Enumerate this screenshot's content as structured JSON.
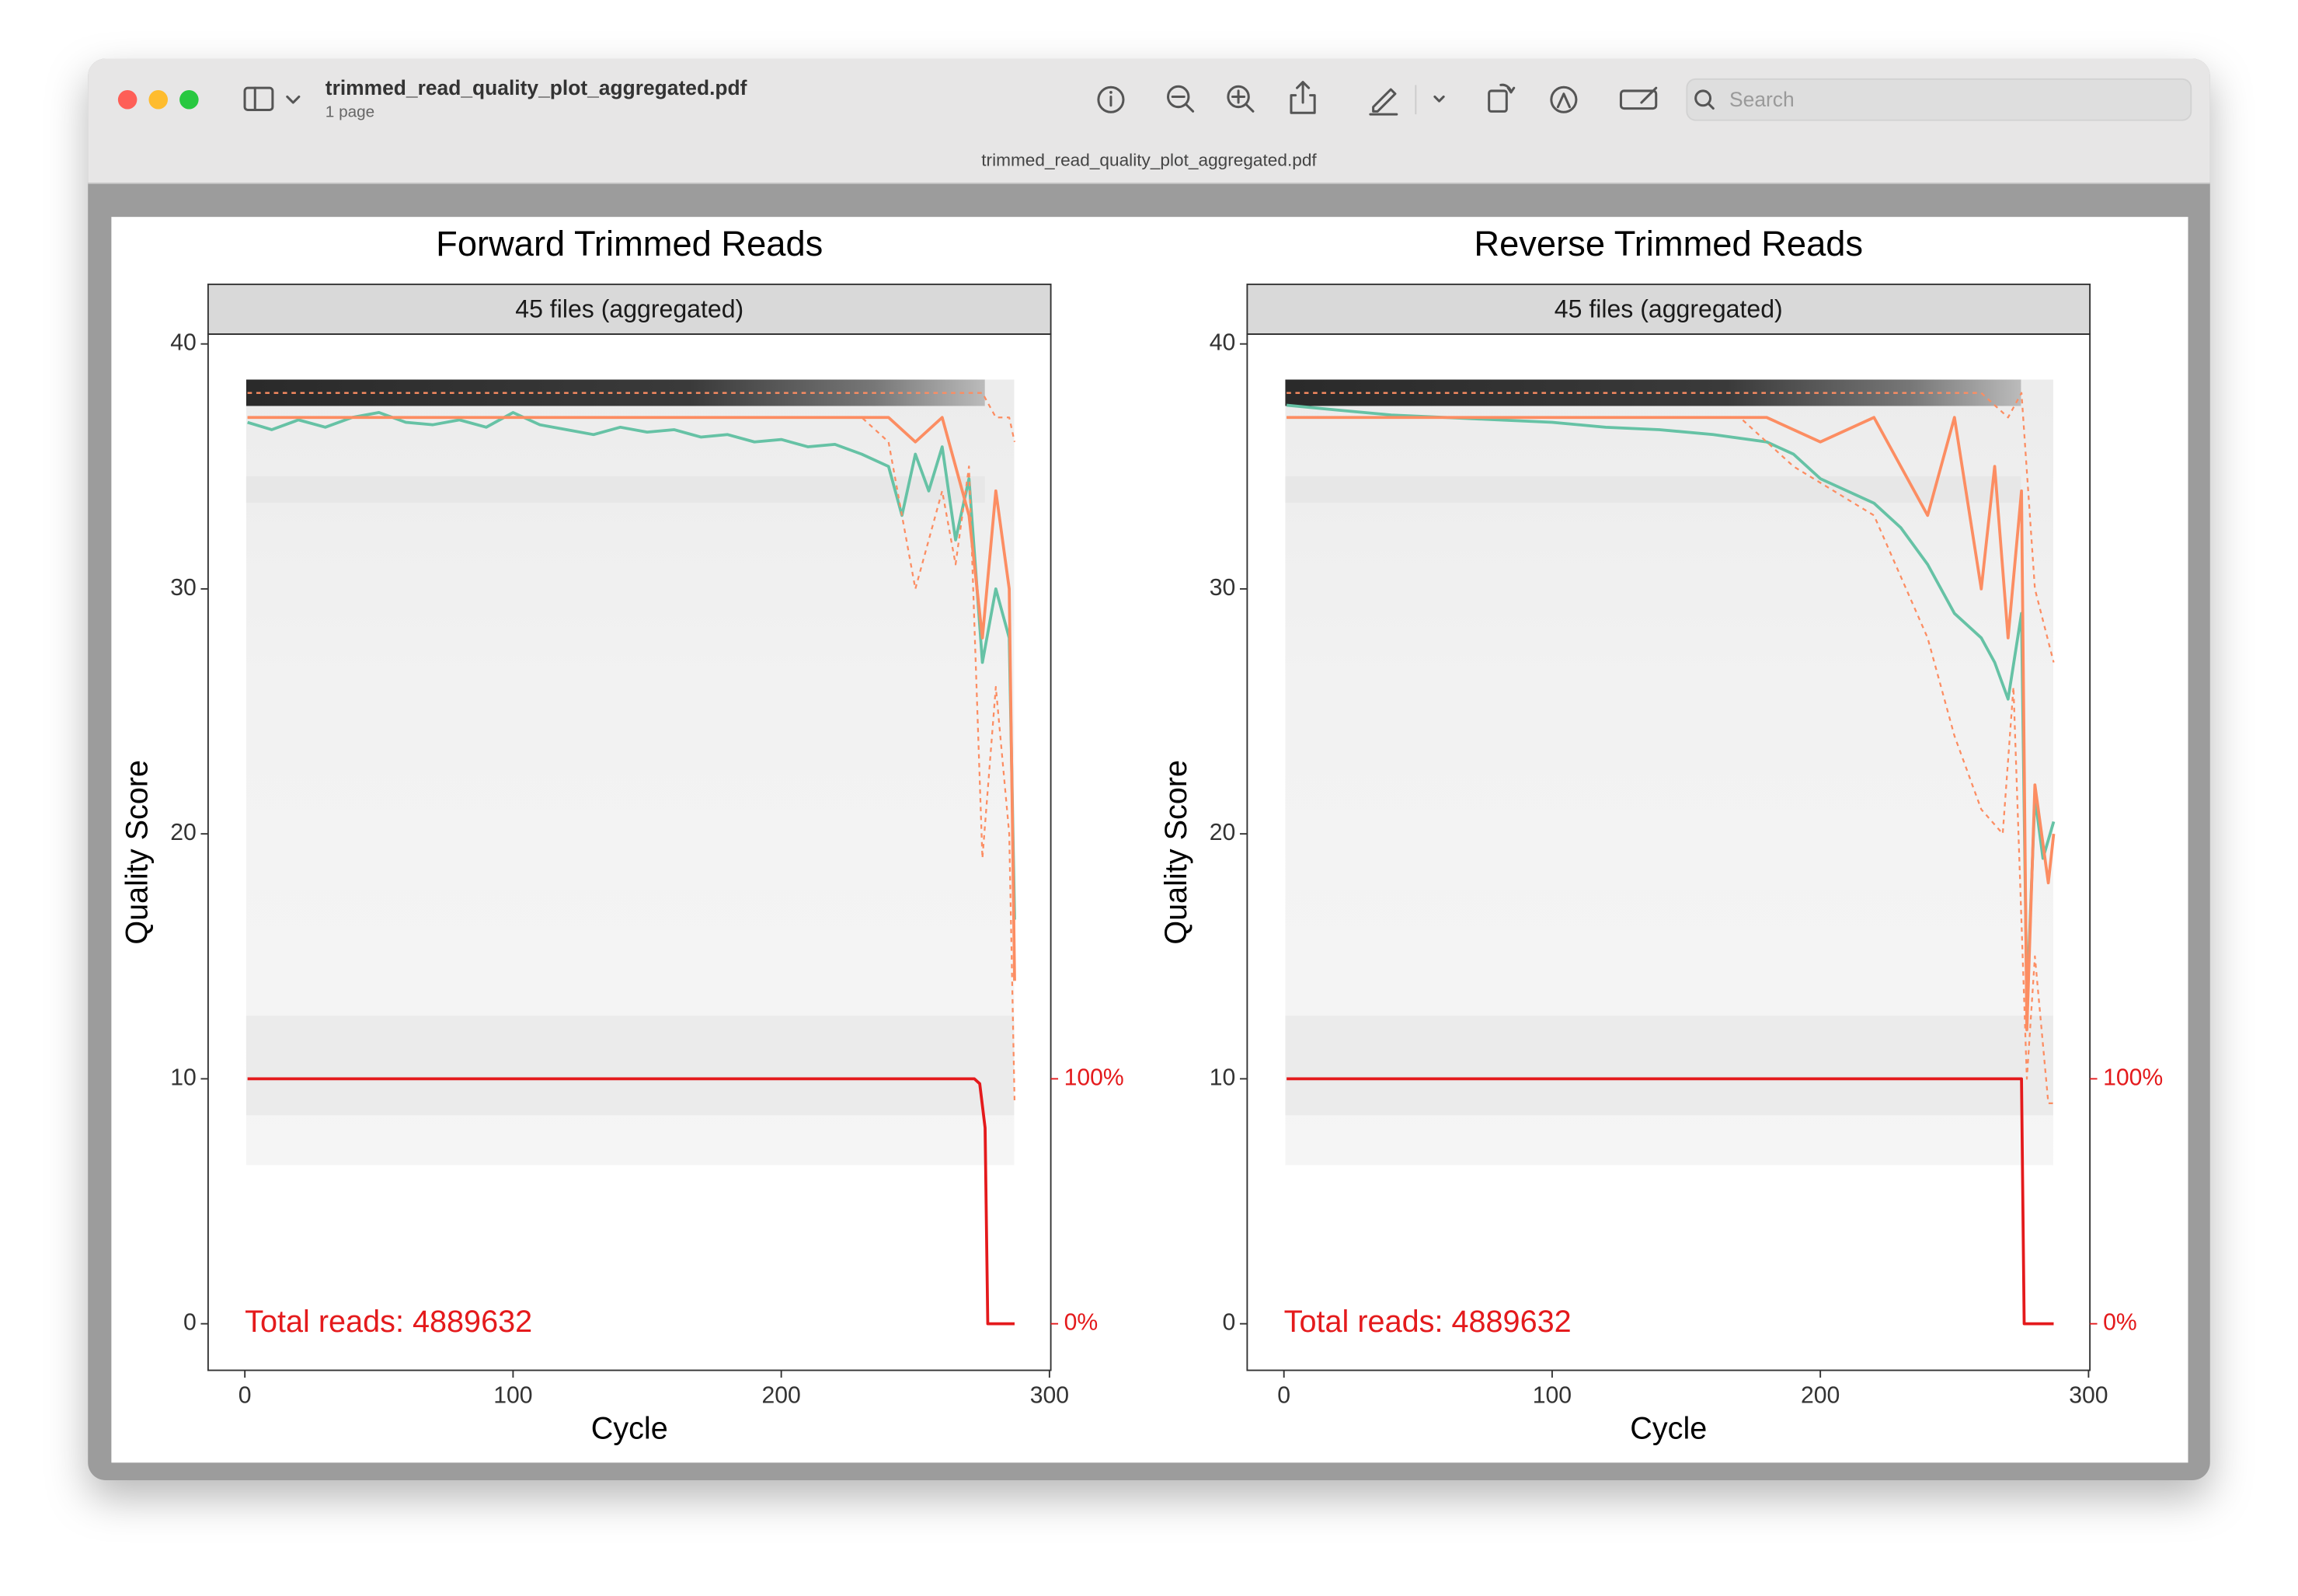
{
  "window": {
    "title": "trimmed_read_quality_plot_aggregated.pdf",
    "subtitle": "1 page",
    "search_placeholder": "Search"
  },
  "chart_data": [
    {
      "type": "line",
      "title": "Forward Trimmed Reads",
      "strip": "45 files (aggregated)",
      "xlabel": "Cycle",
      "ylabel": "Quality Score",
      "annotation": "Total reads: 4889632",
      "xlim": [
        -13.7,
        300.5
      ],
      "ylim": [
        -1.9,
        40.4
      ],
      "xticks": [
        0,
        100,
        200,
        300
      ],
      "yticks": [
        0,
        10,
        20,
        30,
        40
      ],
      "y2lim": [
        -19,
        404
      ],
      "y2ticks": [
        {
          "value": 0,
          "label": "0%"
        },
        {
          "value": 100,
          "label": "100%"
        }
      ],
      "y2color": "#e41a1c",
      "series": [
        {
          "color": "#66c2a5",
          "linestyle": "solid",
          "x": [
            1,
            10,
            20,
            30,
            40,
            50,
            60,
            70,
            80,
            90,
            100,
            110,
            120,
            130,
            140,
            150,
            160,
            170,
            180,
            190,
            200,
            210,
            220,
            230,
            240,
            245,
            250,
            255,
            260,
            265,
            270,
            275,
            280,
            285,
            287
          ],
          "values": [
            36.8,
            36.5,
            36.9,
            36.6,
            37.0,
            37.2,
            36.8,
            36.7,
            36.9,
            36.6,
            37.2,
            36.7,
            36.5,
            36.3,
            36.6,
            36.4,
            36.5,
            36.2,
            36.3,
            36.0,
            36.1,
            35.8,
            35.9,
            35.5,
            35.0,
            33.0,
            35.5,
            34.0,
            35.8,
            32.0,
            34.5,
            27.0,
            30.0,
            28.0,
            16.5
          ]
        },
        {
          "color": "#fc8d62",
          "linestyle": "solid",
          "x": [
            1,
            50,
            100,
            150,
            200,
            230,
            240,
            250,
            260,
            265,
            270,
            275,
            280,
            285,
            287
          ],
          "values": [
            37,
            37,
            37,
            37,
            37,
            37,
            37,
            36,
            37,
            35,
            33,
            28,
            34,
            30,
            14
          ]
        },
        {
          "color": "#fc8d62",
          "linestyle": "dashed",
          "x": [
            1,
            50,
            100,
            150,
            200,
            230,
            240,
            250,
            260,
            265,
            270,
            275,
            280,
            285,
            287
          ],
          "values": [
            37,
            37,
            37,
            37,
            37,
            37,
            36,
            30,
            34,
            31,
            35,
            19,
            26,
            20,
            9
          ]
        },
        {
          "color": "#fc8d62",
          "linestyle": "dashed",
          "x": [
            1,
            50,
            100,
            150,
            200,
            230,
            240,
            250,
            260,
            265,
            270,
            275,
            280,
            285,
            287
          ],
          "values": [
            38,
            38,
            38,
            38,
            38,
            38,
            38,
            38,
            38,
            38,
            38,
            38,
            37,
            37,
            36
          ]
        },
        {
          "color": "#e41a1c",
          "linestyle": "solid",
          "axis": "y2",
          "x": [
            1,
            272,
            274,
            276,
            277,
            287
          ],
          "values": [
            100,
            100,
            98,
            80,
            0,
            0
          ]
        }
      ]
    },
    {
      "type": "line",
      "title": "Reverse Trimmed Reads",
      "strip": "45 files (aggregated)",
      "xlabel": "Cycle",
      "ylabel": "Quality Score",
      "annotation": "Total reads: 4889632",
      "xlim": [
        -13.7,
        300.5
      ],
      "ylim": [
        -1.9,
        40.4
      ],
      "xticks": [
        0,
        100,
        200,
        300
      ],
      "yticks": [
        0,
        10,
        20,
        30,
        40
      ],
      "y2lim": [
        -19,
        404
      ],
      "y2ticks": [
        {
          "value": 0,
          "label": "0%"
        },
        {
          "value": 100,
          "label": "100%"
        }
      ],
      "y2color": "#e41a1c",
      "series": [
        {
          "color": "#66c2a5",
          "linestyle": "solid",
          "x": [
            1,
            20,
            40,
            60,
            80,
            100,
            120,
            140,
            160,
            180,
            190,
            200,
            210,
            220,
            230,
            240,
            250,
            260,
            265,
            270,
            275,
            277,
            280,
            283,
            287
          ],
          "values": [
            37.5,
            37.3,
            37.1,
            37.0,
            36.9,
            36.8,
            36.6,
            36.5,
            36.3,
            36.0,
            35.5,
            34.5,
            34.0,
            33.5,
            32.5,
            31.0,
            29.0,
            28.0,
            27.0,
            25.5,
            29.0,
            13.0,
            21.5,
            19.0,
            20.5
          ]
        },
        {
          "color": "#fc8d62",
          "linestyle": "solid",
          "x": [
            1,
            60,
            120,
            180,
            200,
            220,
            240,
            250,
            260,
            265,
            270,
            275,
            277,
            280,
            285,
            287
          ],
          "values": [
            37,
            37,
            37,
            37,
            36,
            37,
            33,
            37,
            30,
            35,
            28,
            34,
            12,
            22,
            18,
            20
          ]
        },
        {
          "color": "#fc8d62",
          "linestyle": "dashed",
          "x": [
            1,
            60,
            120,
            170,
            190,
            220,
            240,
            250,
            260,
            268,
            272,
            277,
            280,
            285,
            287
          ],
          "values": [
            37,
            37,
            37,
            37,
            35,
            33,
            28,
            24,
            21,
            20,
            26,
            10,
            15,
            9,
            9
          ]
        },
        {
          "color": "#fc8d62",
          "linestyle": "dashed",
          "x": [
            1,
            60,
            120,
            200,
            240,
            260,
            270,
            275,
            280,
            287
          ],
          "values": [
            38,
            38,
            38,
            38,
            38,
            38,
            37,
            38,
            30,
            27
          ]
        },
        {
          "color": "#e41a1c",
          "linestyle": "solid",
          "axis": "y2",
          "x": [
            1,
            275,
            276,
            287
          ],
          "values": [
            100,
            100,
            0,
            0
          ]
        }
      ]
    }
  ]
}
